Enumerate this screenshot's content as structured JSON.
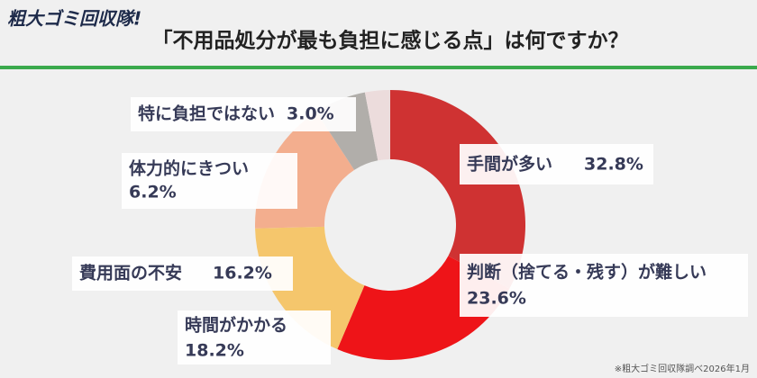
{
  "logo": "粗大ゴミ回収隊!",
  "source": "※粗大ゴミ回収隊調べ2026年1月",
  "chart_data": {
    "type": "donut",
    "title": "「不用品処分が最も負担に感じる点」は何ですか？",
    "categories": [
      "手間が多い",
      "判断（捨てる・残す）が難しい",
      "時間がかかる",
      "費用面の不安",
      "体力的にきつい",
      "特に負担ではない"
    ],
    "values": [
      32.8,
      23.6,
      18.2,
      16.2,
      6.2,
      3.0
    ],
    "value_labels": [
      "32.8%",
      "23.6%",
      "18.2%",
      "16.2%",
      "6.2%",
      "3.0%"
    ],
    "colors": [
      "#cf3232",
      "#ee1418",
      "#f5c66c",
      "#f3ae8e",
      "#b1aeaa",
      "#ecdcdc"
    ]
  }
}
